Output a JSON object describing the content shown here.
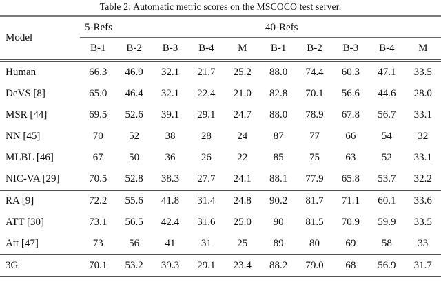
{
  "title": "Table 2: Automatic metric scores on the MSCOCO test server.",
  "table": {
    "model_header": "Model",
    "groups": [
      {
        "label": "5-Refs",
        "columns": [
          "B-1",
          "B-2",
          "B-3",
          "B-4",
          "M"
        ]
      },
      {
        "label": "40-Refs",
        "columns": [
          "B-1",
          "B-2",
          "B-3",
          "B-4",
          "M"
        ]
      }
    ],
    "sections": [
      {
        "rows": [
          {
            "model": "Human",
            "values": [
              "66.3",
              "46.9",
              "32.1",
              "21.7",
              "25.2",
              "88.0",
              "74.4",
              "60.3",
              "47.1",
              "33.5"
            ]
          },
          {
            "model": "DeVS [8]",
            "values": [
              "65.0",
              "46.4",
              "32.1",
              "22.4",
              "21.0",
              "82.8",
              "70.1",
              "56.6",
              "44.6",
              "28.0"
            ]
          },
          {
            "model": "MSR [44]",
            "values": [
              "69.5",
              "52.6",
              "39.1",
              "29.1",
              "24.7",
              "88.0",
              "78.9",
              "67.8",
              "56.7",
              "33.1"
            ]
          },
          {
            "model": "NN [45]",
            "values": [
              "70",
              "52",
              "38",
              "28",
              "24",
              "87",
              "77",
              "66",
              "54",
              "32"
            ]
          },
          {
            "model": "MLBL [46]",
            "values": [
              "67",
              "50",
              "36",
              "26",
              "22",
              "85",
              "75",
              "63",
              "52",
              "33.1"
            ]
          },
          {
            "model": "NIC-VA [29]",
            "values": [
              "70.5",
              "52.8",
              "38.3",
              "27.7",
              "24.1",
              "88.1",
              "77.9",
              "65.8",
              "53.7",
              "32.2"
            ]
          }
        ]
      },
      {
        "rows": [
          {
            "model": "RA [9]",
            "values": [
              "72.2",
              "55.6",
              "41.8",
              "31.4",
              "24.8",
              "90.2",
              "81.7",
              "71.1",
              "60.1",
              "33.6"
            ]
          },
          {
            "model": "ATT [30]",
            "values": [
              "73.1",
              "56.5",
              "42.4",
              "31.6",
              "25.0",
              "90",
              "81.5",
              "70.9",
              "59.9",
              "33.5"
            ]
          },
          {
            "model": "Att [47]",
            "values": [
              "73",
              "56",
              "41",
              "31",
              "25",
              "89",
              "80",
              "69",
              "58",
              "33"
            ]
          }
        ]
      },
      {
        "rows": [
          {
            "model": "3G",
            "values": [
              "70.1",
              "53.2",
              "39.3",
              "29.1",
              "23.4",
              "88.2",
              "79.0",
              "68",
              "56.9",
              "31.7"
            ]
          }
        ]
      }
    ]
  },
  "chart_data": {
    "type": "table",
    "title": "Table 2: Automatic metric scores on the MSCOCO test server.",
    "column_groups": [
      "5-Refs",
      "40-Refs"
    ],
    "columns": [
      "Model",
      "5-Refs B-1",
      "5-Refs B-2",
      "5-Refs B-3",
      "5-Refs B-4",
      "5-Refs M",
      "40-Refs B-1",
      "40-Refs B-2",
      "40-Refs B-3",
      "40-Refs B-4",
      "40-Refs M"
    ],
    "rows": [
      [
        "Human",
        66.3,
        46.9,
        32.1,
        21.7,
        25.2,
        88.0,
        74.4,
        60.3,
        47.1,
        33.5
      ],
      [
        "DeVS [8]",
        65.0,
        46.4,
        32.1,
        22.4,
        21.0,
        82.8,
        70.1,
        56.6,
        44.6,
        28.0
      ],
      [
        "MSR [44]",
        69.5,
        52.6,
        39.1,
        29.1,
        24.7,
        88.0,
        78.9,
        67.8,
        56.7,
        33.1
      ],
      [
        "NN [45]",
        70,
        52,
        38,
        28,
        24,
        87,
        77,
        66,
        54,
        32
      ],
      [
        "MLBL [46]",
        67,
        50,
        36,
        26,
        22,
        85,
        75,
        63,
        52,
        33.1
      ],
      [
        "NIC-VA [29]",
        70.5,
        52.8,
        38.3,
        27.7,
        24.1,
        88.1,
        77.9,
        65.8,
        53.7,
        32.2
      ],
      [
        "RA [9]",
        72.2,
        55.6,
        41.8,
        31.4,
        24.8,
        90.2,
        81.7,
        71.1,
        60.1,
        33.6
      ],
      [
        "ATT [30]",
        73.1,
        56.5,
        42.4,
        31.6,
        25.0,
        90,
        81.5,
        70.9,
        59.9,
        33.5
      ],
      [
        "Att [47]",
        73,
        56,
        41,
        31,
        25,
        89,
        80,
        69,
        58,
        33
      ],
      [
        "3G",
        70.1,
        53.2,
        39.3,
        29.1,
        23.4,
        88.2,
        79.0,
        68,
        56.9,
        31.7
      ]
    ]
  }
}
